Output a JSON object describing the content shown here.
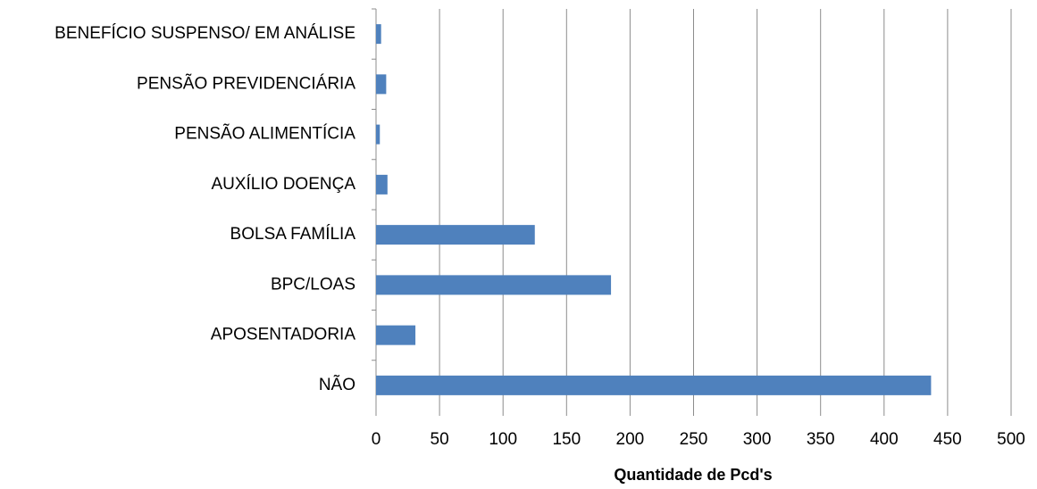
{
  "chart_data": {
    "type": "barh",
    "categories": [
      "BENEFÍCIO SUSPENSO/ EM ANÁLISE",
      "PENSÃO PREVIDENCIÁRIA",
      "PENSÃO ALIMENTÍCIA",
      "AUXÍLIO DOENÇA",
      "BOLSA FAMÍLIA",
      "BPC/LOAS",
      "APOSENTADORIA",
      "NÃO"
    ],
    "values": [
      4,
      8,
      3,
      9,
      125,
      185,
      31,
      437
    ],
    "color": "#4f81bd",
    "x_label": "Quantidade de Pcd's",
    "xlim": [
      0,
      500
    ],
    "xticks": [
      0,
      50,
      100,
      150,
      200,
      250,
      300,
      350,
      400,
      450,
      500
    ],
    "grid": true
  }
}
